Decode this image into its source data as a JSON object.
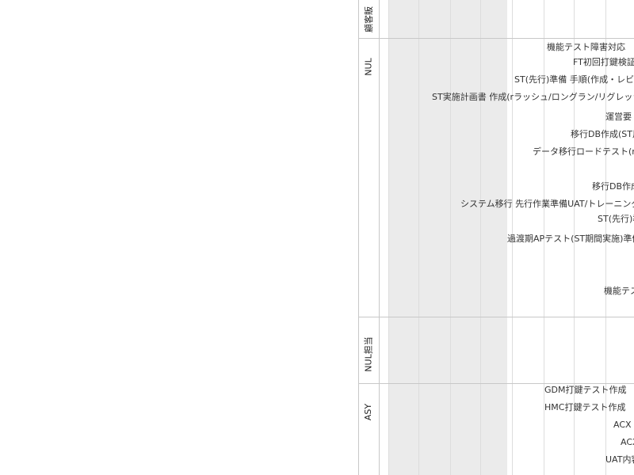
{
  "groups": [
    {
      "label": "顧客販"
    },
    {
      "label": "NUL"
    },
    {
      "label": "NUL担当"
    },
    {
      "label": "ASY"
    }
  ],
  "tasks": [
    {
      "label": "機能テスト障害対応"
    },
    {
      "label": "FT初回打鍵検証"
    },
    {
      "label": "ST(先行)準備 手順(作成・レビュ"
    },
    {
      "label": "ST実施計画書 作成(rラッシュ/ロングラン/リグレッシ"
    },
    {
      "label": "運営要"
    },
    {
      "label": "移行DB作成(ST用"
    },
    {
      "label": "データ移行ロードテスト(m"
    },
    {
      "label": "移行DB作成"
    },
    {
      "label": "システム移行 先行作業準備UAT/トレーニング"
    },
    {
      "label": "ST(先行)準"
    },
    {
      "label": "過渡期APテスト(ST期間実施)準備"
    },
    {
      "label": "機能テス"
    },
    {
      "label": "GDM打鍵テスト作成"
    },
    {
      "label": "HMC打鍵テスト作成"
    },
    {
      "label": "ACX L"
    },
    {
      "label": "ACX"
    },
    {
      "label": "UAT内容"
    }
  ]
}
